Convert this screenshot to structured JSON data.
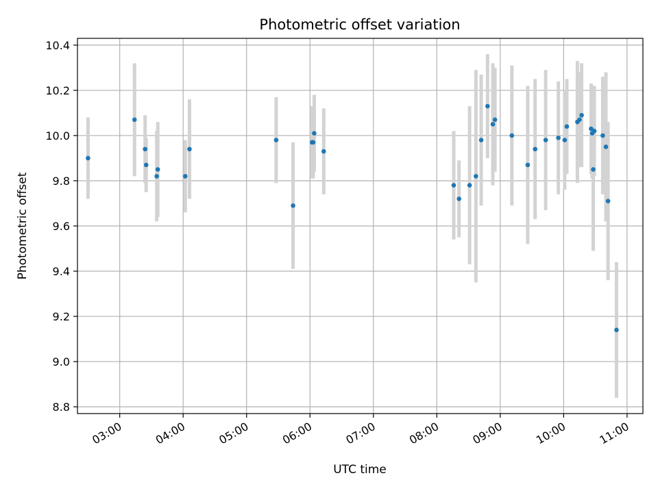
{
  "chart_data": {
    "type": "scatter",
    "title": "Photometric offset variation",
    "xlabel": "UTC time",
    "ylabel": "Photometric offset",
    "xlim": [
      "02:20",
      "11:15"
    ],
    "ylim": [
      8.77,
      10.43
    ],
    "x_ticks": [
      "03:00",
      "04:00",
      "05:00",
      "06:00",
      "07:00",
      "08:00",
      "09:00",
      "10:00",
      "11:00"
    ],
    "y_ticks": [
      8.8,
      9.0,
      9.2,
      9.4,
      9.6,
      9.8,
      10.0,
      10.2,
      10.4
    ],
    "grid": true,
    "colors": {
      "point": "#1f77b4",
      "errorbar": "#d3d3d3",
      "grid": "#b0b0b0"
    },
    "points": [
      {
        "x": "02:30",
        "y": 9.9,
        "yerr": 0.18
      },
      {
        "x": "03:14",
        "y": 10.07,
        "yerr": 0.25
      },
      {
        "x": "03:24",
        "y": 9.94,
        "yerr": 0.15
      },
      {
        "x": "03:25",
        "y": 9.87,
        "yerr": 0.12
      },
      {
        "x": "03:35",
        "y": 9.82,
        "yerr": 0.2
      },
      {
        "x": "03:36",
        "y": 9.85,
        "yerr": 0.21
      },
      {
        "x": "04:02",
        "y": 9.82,
        "yerr": 0.16
      },
      {
        "x": "04:06",
        "y": 9.94,
        "yerr": 0.22
      },
      {
        "x": "05:28",
        "y": 9.98,
        "yerr": 0.19
      },
      {
        "x": "05:44",
        "y": 9.69,
        "yerr": 0.28
      },
      {
        "x": "06:02",
        "y": 9.97,
        "yerr": 0.16
      },
      {
        "x": "06:03",
        "y": 9.97,
        "yerr": 0.16
      },
      {
        "x": "06:04",
        "y": 10.01,
        "yerr": 0.17
      },
      {
        "x": "06:13",
        "y": 9.93,
        "yerr": 0.19
      },
      {
        "x": "08:16",
        "y": 9.78,
        "yerr": 0.24
      },
      {
        "x": "08:21",
        "y": 9.72,
        "yerr": 0.17
      },
      {
        "x": "08:31",
        "y": 9.78,
        "yerr": 0.35
      },
      {
        "x": "08:37",
        "y": 9.82,
        "yerr": 0.47
      },
      {
        "x": "08:42",
        "y": 9.98,
        "yerr": 0.29
      },
      {
        "x": "08:48",
        "y": 10.13,
        "yerr": 0.23
      },
      {
        "x": "08:53",
        "y": 10.05,
        "yerr": 0.27
      },
      {
        "x": "08:55",
        "y": 10.07,
        "yerr": 0.23
      },
      {
        "x": "09:11",
        "y": 10.0,
        "yerr": 0.31
      },
      {
        "x": "09:26",
        "y": 9.87,
        "yerr": 0.35
      },
      {
        "x": "09:33",
        "y": 9.94,
        "yerr": 0.31
      },
      {
        "x": "09:43",
        "y": 9.98,
        "yerr": 0.31
      },
      {
        "x": "09:55",
        "y": 9.99,
        "yerr": 0.25
      },
      {
        "x": "10:01",
        "y": 9.98,
        "yerr": 0.22
      },
      {
        "x": "10:03",
        "y": 10.04,
        "yerr": 0.21
      },
      {
        "x": "10:13",
        "y": 10.06,
        "yerr": 0.27
      },
      {
        "x": "10:15",
        "y": 10.07,
        "yerr": 0.21
      },
      {
        "x": "10:17",
        "y": 10.09,
        "yerr": 0.23
      },
      {
        "x": "10:26",
        "y": 10.03,
        "yerr": 0.2
      },
      {
        "x": "10:27",
        "y": 10.01,
        "yerr": 0.2
      },
      {
        "x": "10:28",
        "y": 9.85,
        "yerr": 0.36
      },
      {
        "x": "10:29",
        "y": 10.02,
        "yerr": 0.2
      },
      {
        "x": "10:37",
        "y": 10.0,
        "yerr": 0.26
      },
      {
        "x": "10:40",
        "y": 9.95,
        "yerr": 0.33
      },
      {
        "x": "10:42",
        "y": 9.71,
        "yerr": 0.35
      },
      {
        "x": "10:50",
        "y": 9.14,
        "yerr": 0.3
      }
    ]
  }
}
